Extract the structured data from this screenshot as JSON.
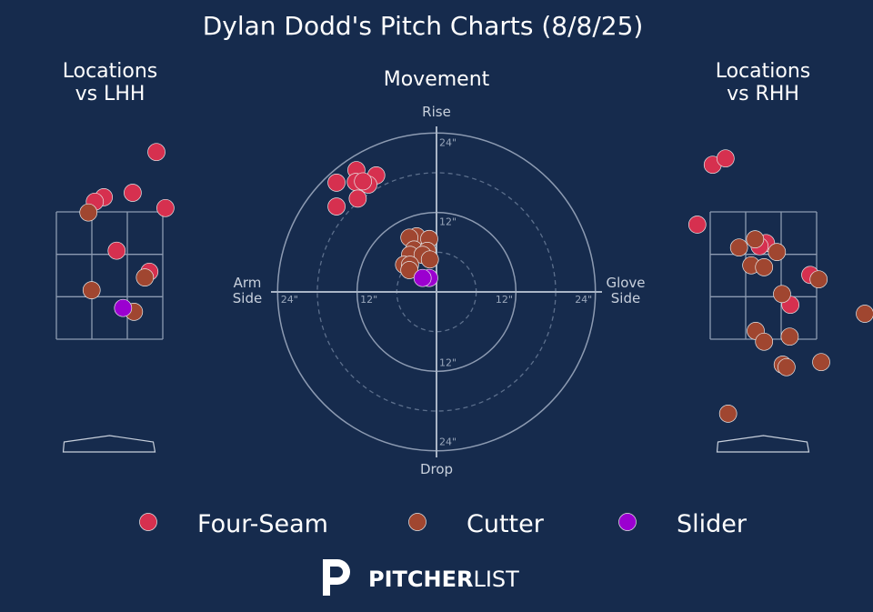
{
  "title": "Dylan Dodd's Pitch Charts (8/8/25)",
  "chart_data": [
    {
      "type": "scatter",
      "title": "Locations\nvs LHH",
      "xlim": [
        -1.7,
        1.7
      ],
      "ylim": [
        0,
        5
      ],
      "series": [
        {
          "name": "Four-Seam",
          "color": "#d6304f",
          "x": [
            0.73,
            0.36,
            -0.09,
            -0.23,
            0.87,
            0.11,
            0.62
          ],
          "values": [
            4.44,
            3.8,
            3.73,
            3.66,
            3.56,
            2.89,
            2.56
          ]
        },
        {
          "name": "Cutter",
          "color": "#a04630",
          "x": [
            -0.33,
            0.55,
            -0.28,
            0.38
          ],
          "values": [
            3.49,
            2.47,
            2.27,
            1.93
          ]
        },
        {
          "name": "Slider",
          "color": "#9b00d0",
          "x": [
            0.21
          ],
          "values": [
            1.99
          ]
        }
      ]
    },
    {
      "type": "movement",
      "title": "Movement",
      "xlim": [
        -25,
        25
      ],
      "ylim": [
        -25,
        25
      ],
      "xticks": [
        {
          "value": -24,
          "label": "24\""
        },
        {
          "value": -12,
          "label": "12\""
        },
        {
          "value": 12,
          "label": "12\""
        },
        {
          "value": 24,
          "label": "24\""
        }
      ],
      "yticks": [
        {
          "value": 24,
          "label": "24\""
        },
        {
          "value": 12,
          "label": "12\""
        },
        {
          "value": -12,
          "label": "12\""
        },
        {
          "value": -24,
          "label": "24\""
        }
      ],
      "y_label_top": "Rise",
      "y_label_bottom": "Drop",
      "x_label_left": "Arm\nSide",
      "x_label_right": "Glove\nSide",
      "series": [
        {
          "name": "Four-Seam",
          "color": "#d6304f",
          "x": [
            -15.1,
            -12.1,
            -9.1,
            -10.3,
            -12.2,
            -11.1,
            -11.9,
            -15.1
          ],
          "values": [
            16.5,
            18.4,
            17.6,
            16.2,
            16.6,
            16.7,
            14.1,
            12.9
          ]
        },
        {
          "name": "Cutter",
          "color": "#a04630",
          "x": [
            -3.0,
            -1.1,
            -4.1,
            -3.4,
            -1.4,
            -4.0,
            -2.1,
            -1.0,
            -4.9,
            -4.0,
            -4.1
          ],
          "values": [
            8.4,
            8.0,
            8.2,
            6.4,
            6.2,
            5.6,
            5.6,
            4.9,
            4.1,
            4.1,
            3.3
          ]
        },
        {
          "name": "Slider",
          "color": "#9b00d0",
          "x": [
            -1.1,
            -2.1
          ],
          "values": [
            2.1,
            2.1
          ]
        }
      ]
    },
    {
      "type": "scatter",
      "title": "Locations\nvs RHH",
      "xlim": [
        -1.7,
        1.7
      ],
      "ylim": [
        0,
        5
      ],
      "series": [
        {
          "name": "Four-Seam",
          "color": "#d6304f",
          "x": [
            -0.79,
            -0.59,
            -1.03,
            0.04,
            0.73,
            0.42,
            -0.06
          ],
          "values": [
            4.24,
            4.34,
            3.3,
            3.01,
            2.51,
            2.04,
            2.96
          ]
        },
        {
          "name": "Cutter",
          "color": "#a04630",
          "x": [
            -0.38,
            -0.13,
            0.21,
            -0.19,
            0.01,
            0.86,
            0.29,
            -0.12,
            0.01,
            0.41,
            1.58,
            0.3,
            0.36,
            0.9,
            -0.55
          ],
          "values": [
            2.94,
            3.07,
            2.87,
            2.66,
            2.63,
            2.44,
            2.21,
            1.63,
            1.46,
            1.54,
            1.9,
            1.1,
            1.06,
            1.14,
            0.33
          ]
        },
        {
          "name": "Slider",
          "color": "#9b00d0",
          "x": [],
          "values": []
        }
      ]
    }
  ],
  "logo": {
    "bold": "PITCHER",
    "light": "LIST"
  }
}
